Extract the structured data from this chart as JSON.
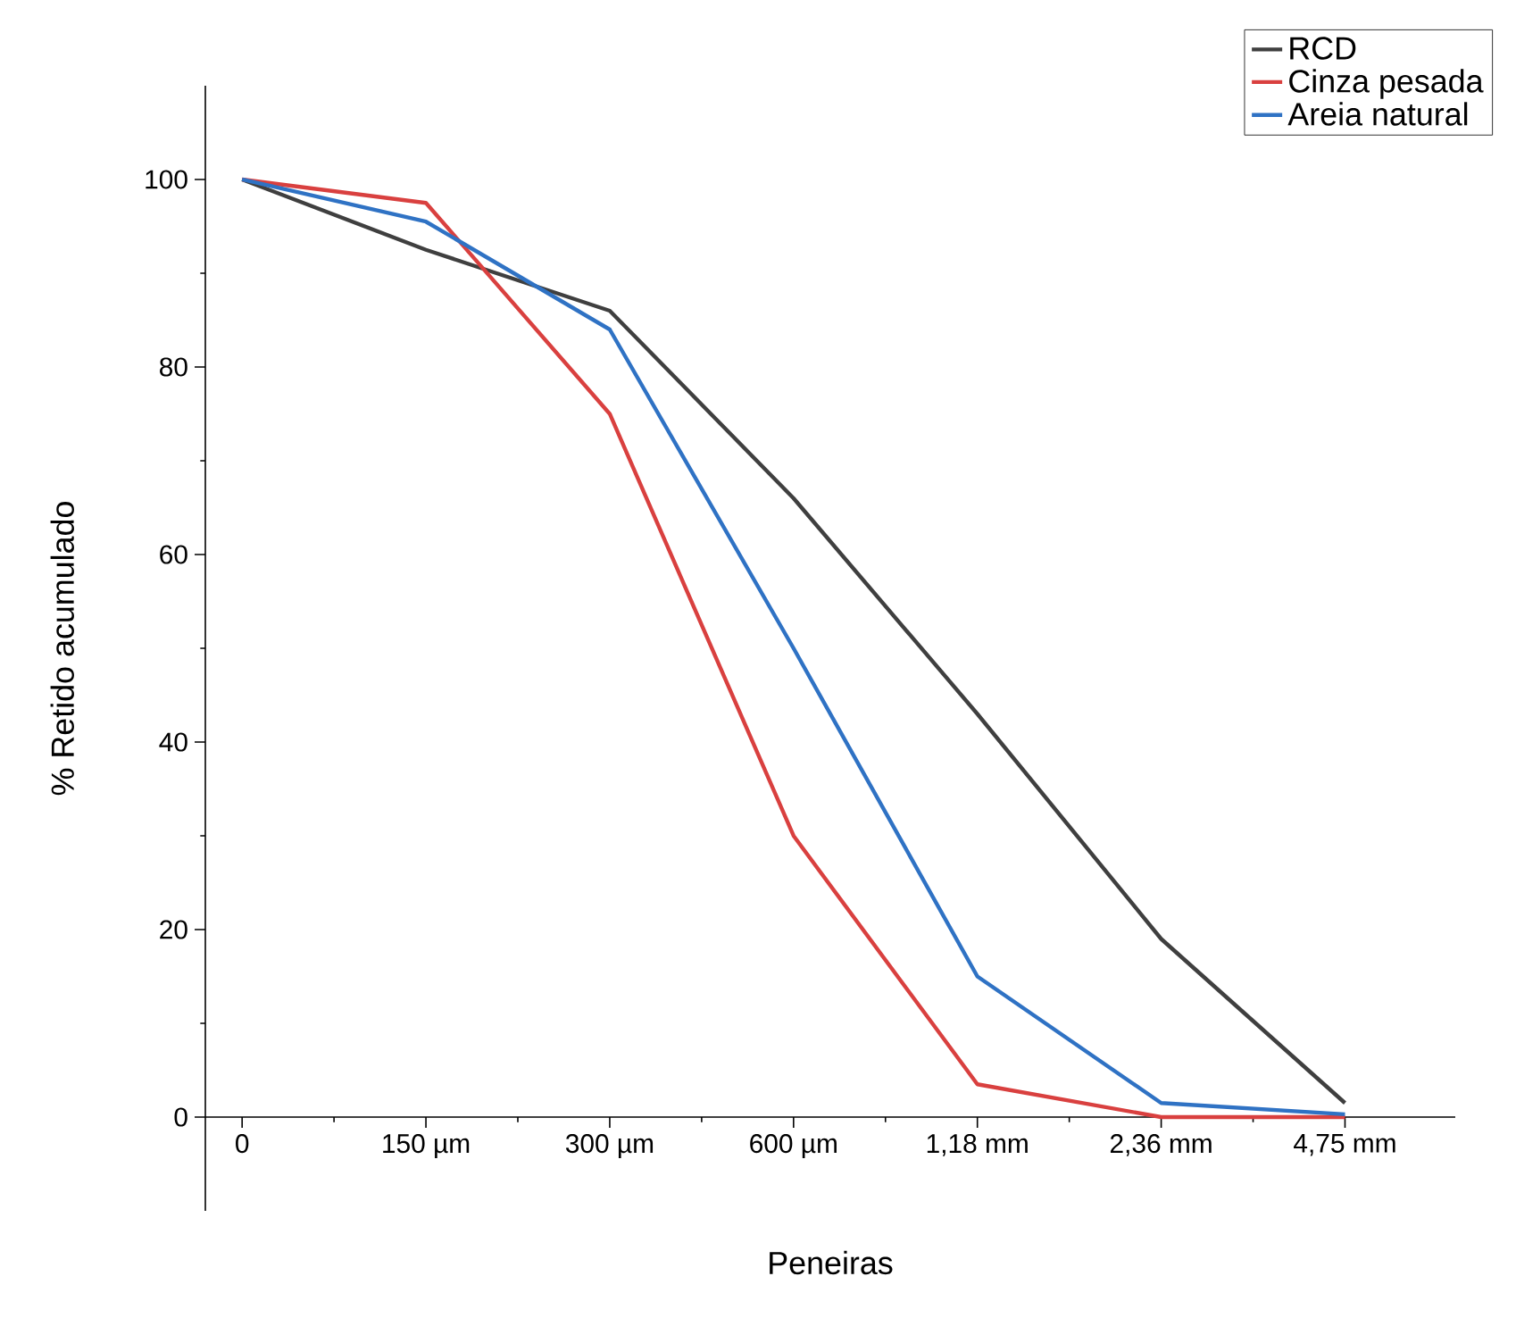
{
  "chart_data": {
    "type": "line",
    "xlabel": "Peneiras",
    "ylabel": "% Retido acumulado",
    "categories": [
      "0",
      "150 µm",
      "300 µm",
      "600 µm",
      "1,18 mm",
      "2,36 mm",
      "4,75 mm"
    ],
    "series": [
      {
        "name": "RCD",
        "color": "#3f3f3f",
        "values": [
          100,
          92.5,
          86,
          66,
          43,
          19,
          1.5
        ]
      },
      {
        "name": "Cinza pesada",
        "color": "#d9403f",
        "values": [
          100,
          97.5,
          75,
          30,
          3.5,
          0,
          0
        ]
      },
      {
        "name": "Areia natural",
        "color": "#2f72c4",
        "values": [
          100,
          95.5,
          84,
          50,
          15,
          1.5,
          0.3
        ]
      }
    ],
    "ylim": [
      -10,
      110
    ],
    "yticks": [
      0,
      20,
      40,
      60,
      80,
      100
    ],
    "legend": "top right",
    "grid": false,
    "marker": "none",
    "line_style": "solid"
  }
}
